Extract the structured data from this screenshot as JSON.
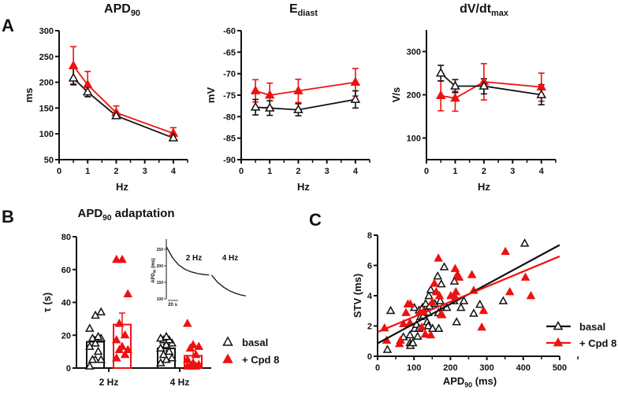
{
  "colors": {
    "basal": "#111111",
    "cpd": "#ee1111"
  },
  "panel_labels": [
    "A",
    "B",
    "C"
  ],
  "legend": {
    "basal": "basal",
    "cpd": "+ Cpd 8"
  },
  "chart_data": [
    {
      "id": "apd90",
      "type": "line",
      "panel": "A",
      "title": {
        "main": "APD",
        "sub": "90"
      },
      "xlabel": "Hz",
      "ylabel": "ms",
      "xlim": [
        0,
        4.5
      ],
      "ylim": [
        50,
        300
      ],
      "xticks": [
        0,
        1,
        2,
        3,
        4
      ],
      "yticks": [
        50,
        100,
        150,
        200,
        250,
        300
      ],
      "x": [
        0.5,
        1,
        2,
        4
      ],
      "series": [
        {
          "name": "basal",
          "values": [
            208,
            181,
            135,
            92
          ],
          "err_low": [
            195,
            172,
            130,
            88
          ],
          "err_high": [
            228,
            194,
            141,
            99
          ]
        },
        {
          "name": "+ Cpd 8",
          "values": [
            232,
            195,
            141,
            101
          ],
          "err_low": [
            197,
            172,
            136,
            96
          ],
          "err_high": [
            269,
            221,
            154,
            112
          ]
        }
      ]
    },
    {
      "id": "ediast",
      "type": "line",
      "panel": "A",
      "title": {
        "main": "E",
        "sub": "diast"
      },
      "xlabel": "Hz",
      "ylabel": "mV",
      "xlim": [
        0,
        4.5
      ],
      "ylim": [
        -90,
        -60
      ],
      "xticks": [
        0,
        1,
        2,
        3,
        4
      ],
      "yticks": [
        -90,
        -85,
        -80,
        -75,
        -70,
        -65,
        -60
      ],
      "x": [
        0.5,
        1,
        2,
        4
      ],
      "series": [
        {
          "name": "basal",
          "values": [
            -77.8,
            -78.0,
            -78.4,
            -76.0
          ],
          "err_low": [
            -79.6,
            -79.7,
            -79.8,
            -78.0
          ],
          "err_high": [
            -76.0,
            -76.3,
            -77.0,
            -74.0
          ]
        },
        {
          "name": "+ Cpd 8",
          "values": [
            -74.0,
            -75.0,
            -74.0,
            -72.0
          ],
          "err_low": [
            -76.6,
            -77.8,
            -76.7,
            -75.2
          ],
          "err_high": [
            -71.4,
            -72.2,
            -71.3,
            -68.8
          ]
        }
      ]
    },
    {
      "id": "dvdt",
      "type": "line",
      "panel": "A",
      "title": {
        "main": "dV/dt",
        "sub": "max"
      },
      "xlabel": "Hz",
      "ylabel": "V/s",
      "xlim": [
        0,
        4.5
      ],
      "ylim": [
        50,
        350
      ],
      "xticks": [
        0,
        1,
        2,
        3,
        4
      ],
      "yticks": [
        100,
        200,
        300
      ],
      "x": [
        0.5,
        1,
        2,
        4
      ],
      "series": [
        {
          "name": "basal",
          "values": [
            250,
            220,
            220,
            200
          ],
          "err_low": [
            232,
            205,
            202,
            177
          ],
          "err_high": [
            268,
            235,
            237,
            223
          ]
        },
        {
          "name": "+ Cpd 8",
          "values": [
            198,
            192,
            230,
            218
          ],
          "err_low": [
            163,
            162,
            188,
            185
          ],
          "err_high": [
            232,
            208,
            272,
            250
          ]
        }
      ]
    },
    {
      "id": "adaptation",
      "type": "bar",
      "panel": "B",
      "title": {
        "main": "APD",
        "sub": "90",
        "rest": " adaptation"
      },
      "ylabel": "τ (s)",
      "ylim": [
        0,
        80
      ],
      "yticks": [
        0,
        20,
        40,
        60,
        80
      ],
      "categories": [
        "2 Hz",
        "4 Hz"
      ],
      "series": [
        {
          "name": "basal",
          "values": [
            16,
            12
          ],
          "sem": [
            3,
            2.5
          ],
          "points": [
            [
              1,
              5,
              5,
              5,
              10,
              13,
              15,
              18,
              18,
              19,
              24,
              32,
              34
            ],
            [
              3,
              5,
              6,
              8,
              10,
              12,
              14,
              15,
              17,
              17,
              18,
              19
            ]
          ]
        },
        {
          "name": "+ Cpd 8",
          "values": [
            26.5,
            7.5
          ],
          "sem": [
            7,
            3
          ],
          "points": [
            [
              66,
              66,
              45,
              27,
              20,
              17,
              13,
              11,
              11,
              8,
              6
            ],
            [
              27,
              14,
              13,
              12,
              8,
              5,
              3,
              2,
              1,
              1,
              1,
              1
            ]
          ]
        }
      ],
      "inset": {
        "ylabel": {
          "main": "APD",
          "sub": "90",
          "rest": " (ms)"
        },
        "ylim": [
          100,
          270
        ],
        "yticks": [
          100,
          150,
          200,
          250
        ],
        "scalebar": "20 s",
        "segment_labels": [
          "2 Hz",
          "4 Hz"
        ],
        "segments": [
          {
            "t": [
              0,
              5,
              10,
              15,
              20,
              25,
              30,
              35
            ],
            "apd": [
              258,
              225,
              203,
              190,
              182,
              177,
              174,
              172
            ]
          },
          {
            "t": [
              37,
              42,
              47,
              52,
              57,
              62,
              65
            ],
            "apd": [
              172,
              150,
              135,
              124,
              116,
              111,
              109
            ]
          }
        ]
      }
    },
    {
      "id": "stv",
      "type": "scatter",
      "panel": "C",
      "xlabel": {
        "main": "APD",
        "sub": "90",
        "rest": " (ms)"
      },
      "ylabel": "STV (ms)",
      "xlim": [
        0,
        500
      ],
      "ylim": [
        0,
        8
      ],
      "xticks": [
        0,
        100,
        200,
        300,
        400,
        500
      ],
      "yticks": [
        0,
        2,
        4,
        6,
        8
      ],
      "series": [
        {
          "name": "basal",
          "fit": {
            "intercept": 0.85,
            "slope": 0.013
          },
          "points": [
            [
              27,
              0.43
            ],
            [
              36,
              3.0
            ],
            [
              71,
              1.26
            ],
            [
              89,
              0.87
            ],
            [
              90,
              0.69
            ],
            [
              89,
              1.39
            ],
            [
              97,
              0.87
            ],
            [
              102,
              1.82
            ],
            [
              101,
              3.2
            ],
            [
              107,
              2.08
            ],
            [
              110,
              1.3
            ],
            [
              114,
              1.82
            ],
            [
              114,
              3.03
            ],
            [
              118,
              2.6
            ],
            [
              123,
              3.2
            ],
            [
              126,
              2.68
            ],
            [
              132,
              3.46
            ],
            [
              136,
              2.25
            ],
            [
              139,
              2.86
            ],
            [
              139,
              1.99
            ],
            [
              143,
              3.29
            ],
            [
              141,
              3.98
            ],
            [
              146,
              4.38
            ],
            [
              151,
              1.82
            ],
            [
              157,
              3.46
            ],
            [
              165,
              5.28
            ],
            [
              167,
              2.86
            ],
            [
              168,
              1.82
            ],
            [
              172,
              3.64
            ],
            [
              175,
              4.76
            ],
            [
              179,
              3.2
            ],
            [
              183,
              5.89
            ],
            [
              190,
              3.2
            ],
            [
              210,
              3.64
            ],
            [
              211,
              4.94
            ],
            [
              217,
              2.25
            ],
            [
              229,
              3.2
            ],
            [
              237,
              3.64
            ],
            [
              264,
              2.82
            ],
            [
              281,
              3.41
            ],
            [
              345,
              3.64
            ],
            [
              404,
              7.45
            ]
          ]
        },
        {
          "name": "+ Cpd 8",
          "fit": {
            "intercept": 1.6,
            "slope": 0.01
          },
          "points": [
            [
              19,
              1.85
            ],
            [
              25,
              1.04
            ],
            [
              60,
              0.81
            ],
            [
              63,
              1.04
            ],
            [
              71,
              2.13
            ],
            [
              78,
              2.86
            ],
            [
              83,
              3.43
            ],
            [
              90,
              3.43
            ],
            [
              89,
              2.2
            ],
            [
              116,
              2.89
            ],
            [
              121,
              1.9
            ],
            [
              126,
              2.94
            ],
            [
              131,
              1.44
            ],
            [
              146,
              1.39
            ],
            [
              150,
              3.55
            ],
            [
              156,
              4.8
            ],
            [
              161,
              4.24
            ],
            [
              167,
              6.46
            ],
            [
              170,
              3.98
            ],
            [
              174,
              2.77
            ],
            [
              177,
              2.72
            ],
            [
              201,
              3.98
            ],
            [
              211,
              3.98
            ],
            [
              213,
              5.77
            ],
            [
              215,
              4.24
            ],
            [
              219,
              5.37
            ],
            [
              224,
              5.2
            ],
            [
              259,
              5.37
            ],
            [
              264,
              4.33
            ],
            [
              291,
              3.0
            ],
            [
              286,
              1.9
            ],
            [
              351,
              6.9
            ],
            [
              363,
              4.24
            ],
            [
              406,
              5.2
            ],
            [
              421,
              3.98
            ]
          ]
        }
      ]
    }
  ]
}
